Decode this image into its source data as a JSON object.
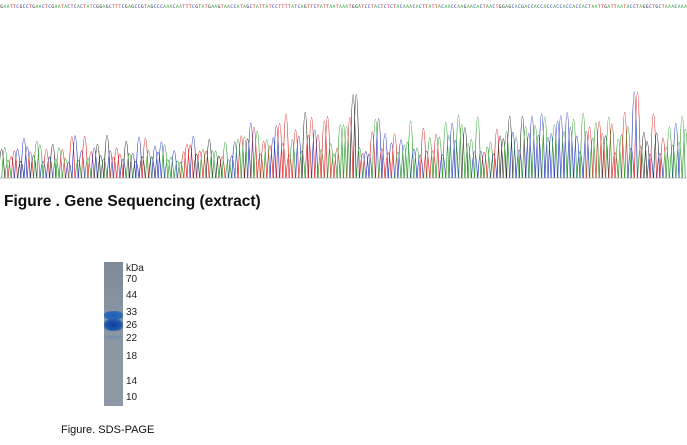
{
  "sequencing": {
    "caption": "Figure . Gene Sequencing (extract)",
    "base_colors": {
      "A": "#2a9d2a",
      "C": "#2233bb",
      "G": "#222222",
      "T": "#dd2222"
    },
    "sequence": "GAATTCGCCTGAACTCGAATACTCACTATCGGAGCTTTCGAGCCGTAGCCCAAACAATTTCGTATGAAGTAACCATAGCTATTATCCTTTTATCAGTTCTATTAATAAATGGATCCTACTCTCTACAAACACTTATTACAACCAAGAACACTAACTGGAGCACGACCACCACCACCACCACCACTAATTGATTAATACCTAGGCTGCTAAACAAA"
  },
  "sds_page": {
    "caption": "Figure. SDS-PAGE",
    "unit": "kDa",
    "markers": [
      "70",
      "44",
      "33",
      "26",
      "22",
      "18",
      "14",
      "10"
    ]
  }
}
